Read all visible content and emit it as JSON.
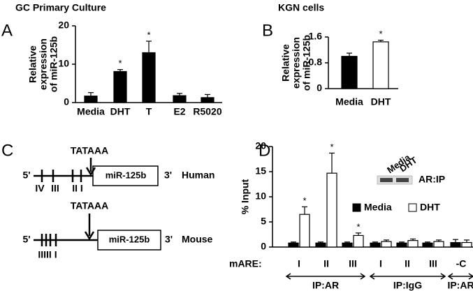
{
  "chart_data": [
    {
      "type": "bar",
      "panel": "A",
      "title": "GC Primary Culture",
      "ylabel_lines": [
        "Relative",
        "expression",
        "of miR-125b"
      ],
      "categories": [
        "Media",
        "DHT",
        "T",
        "E2",
        "R5020"
      ],
      "series": [
        {
          "color": "#000000",
          "values": [
            1.7,
            8.1,
            13.0,
            1.8,
            1.3
          ],
          "errors": [
            0.9,
            0.5,
            3.0,
            0.6,
            0.8
          ]
        }
      ],
      "significance": [
        null,
        "*",
        "*",
        null,
        null
      ],
      "ylim": [
        0,
        20
      ],
      "yticks": [
        0,
        10,
        20
      ]
    },
    {
      "type": "bar",
      "panel": "B",
      "title": "KGN cells",
      "ylabel_lines": [
        "Relative",
        "expression",
        "of miR-125b"
      ],
      "categories": [
        "Media",
        "DHT"
      ],
      "series": [
        {
          "colors": [
            "#000000",
            "#ffffff"
          ],
          "values": [
            1.0,
            1.45
          ],
          "errors": [
            0.1,
            0.05
          ]
        }
      ],
      "significance": [
        null,
        "*"
      ],
      "ylim": [
        0,
        1.6
      ],
      "yticks": [
        0,
        0.8,
        1.6
      ]
    },
    {
      "type": "grouped-bar",
      "panel": "D",
      "ylabel": "% Input",
      "xlabel": "mARE:",
      "categories": [
        "I",
        "II",
        "III",
        "I",
        "II",
        "III",
        "-C"
      ],
      "groups": [
        "IP:AR",
        "IP:IgG",
        "IP:AR"
      ],
      "series": [
        {
          "name": "Media",
          "color": "#000000",
          "values": [
            0.8,
            0.8,
            0.8,
            0.8,
            0.8,
            0.8,
            0.9
          ],
          "errors": [
            0.2,
            0.2,
            0.2,
            0.2,
            0.2,
            0.2,
            0.6
          ]
        },
        {
          "name": "DHT",
          "color": "#ffffff",
          "values": [
            6.5,
            14.7,
            2.3,
            1.1,
            1.3,
            1.1,
            0.9
          ],
          "errors": [
            1.5,
            4.0,
            0.5,
            0.3,
            0.3,
            0.3,
            0.5
          ]
        }
      ],
      "significance": [
        "*",
        "*",
        "*",
        null,
        null,
        null,
        null
      ],
      "inset": {
        "lanes": [
          "Media",
          "DHT"
        ],
        "label": "AR:IP"
      },
      "ylim": [
        0,
        20
      ],
      "yticks": [
        0,
        5,
        10,
        15,
        20
      ]
    }
  ],
  "diagram": {
    "panel": "C",
    "human": {
      "promoter": "TATAAA",
      "five": "5'",
      "gene": "miR-125b",
      "three": "3'",
      "species": "Human",
      "sites": [
        "IV",
        "III",
        "II I"
      ]
    },
    "mouse": {
      "promoter": "TATAAA",
      "five": "5'",
      "gene": "miR-125b",
      "three": "3'",
      "species": "Mouse",
      "sites": [
        "IIIII I"
      ]
    }
  }
}
